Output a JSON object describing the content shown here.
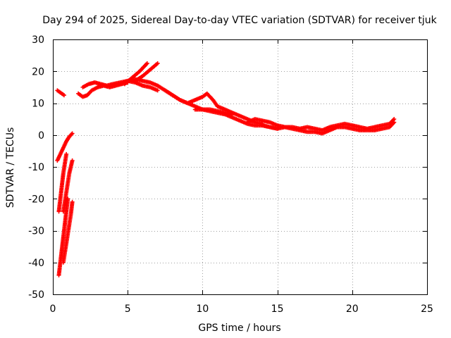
{
  "chart_data": {
    "type": "scatter",
    "title": "Day 294 of 2025, Sidereal Day-to-day VTEC variation (SDTVAR) for receiver tjuk",
    "xlabel": "GPS time / hours",
    "ylabel": "SDTVAR / TECUs",
    "xlim": [
      0,
      25
    ],
    "ylim": [
      -50,
      30
    ],
    "xticks": [
      0,
      5,
      10,
      15,
      20,
      25
    ],
    "yticks": [
      -50,
      -40,
      -30,
      -20,
      -10,
      0,
      10,
      20,
      30
    ],
    "grid": true,
    "marker": "+",
    "color": "#ff0000",
    "series": [
      {
        "x": [
          0.3,
          0.45,
          0.6,
          0.75
        ],
        "y": [
          14,
          13.5,
          13,
          12.5
        ]
      },
      {
        "x": [
          0.3,
          0.5,
          0.7,
          0.9,
          1.1,
          1.3
        ],
        "y": [
          -8,
          -6,
          -4,
          -2,
          -0.5,
          0.5
        ]
      },
      {
        "x": [
          0.4,
          0.5,
          0.6,
          0.7,
          0.8,
          0.9
        ],
        "y": [
          -24,
          -20,
          -16,
          -12,
          -9,
          -6
        ]
      },
      {
        "x": [
          0.7,
          0.8,
          0.9,
          1.0,
          1.1,
          1.2,
          1.3
        ],
        "y": [
          -24,
          -21,
          -18,
          -15,
          -12,
          -10,
          -8
        ]
      },
      {
        "x": [
          0.4,
          0.5,
          0.6,
          0.7,
          0.8,
          0.9,
          1.0
        ],
        "y": [
          -44,
          -40,
          -36,
          -32,
          -28,
          -24,
          -20
        ]
      },
      {
        "x": [
          0.7,
          0.8,
          0.9,
          1.0,
          1.1,
          1.2,
          1.3
        ],
        "y": [
          -40,
          -37,
          -34,
          -31,
          -28,
          -25,
          -21
        ]
      },
      {
        "x": [
          1.7,
          2.0,
          2.3,
          2.6,
          3.0,
          3.4,
          3.8,
          4.2,
          4.6,
          5.0
        ],
        "y": [
          13,
          12,
          12.5,
          14,
          15,
          15.5,
          15,
          15.5,
          16,
          16.5
        ]
      },
      {
        "x": [
          2.0,
          2.4,
          2.8,
          3.2,
          3.6,
          4.0,
          4.5,
          5.0,
          5.5,
          6.0,
          6.5,
          7.0
        ],
        "y": [
          15,
          16,
          16.5,
          16,
          15.5,
          16,
          16.5,
          17,
          16.5,
          15.5,
          15,
          14
        ]
      },
      {
        "x": [
          4.5,
          5.0,
          5.5,
          6.0,
          6.5,
          7.0,
          7.5,
          8.0,
          8.5,
          9.0,
          9.5,
          10.0,
          10.5,
          11.0,
          11.5,
          12.0
        ],
        "y": [
          16,
          17,
          17.5,
          17,
          16.5,
          15.5,
          14,
          12.5,
          11,
          10,
          9,
          8,
          8,
          7.5,
          7,
          6.5
        ]
      },
      {
        "x": [
          4.8,
          5.3,
          5.8,
          6.3
        ],
        "y": [
          16,
          18,
          20,
          22.5
        ]
      },
      {
        "x": [
          5.5,
          6.0,
          6.5,
          7.0
        ],
        "y": [
          17,
          18.5,
          20.5,
          22.5
        ]
      },
      {
        "x": [
          7.5,
          8.0,
          8.5,
          9.0,
          9.5,
          10.0,
          10.3,
          10.7,
          11.0,
          11.5,
          12.0,
          12.5,
          13.0,
          13.5,
          14.0
        ],
        "y": [
          14,
          12.5,
          11,
          10,
          11,
          12,
          13,
          11,
          9,
          8,
          7,
          6,
          5,
          4,
          3.5
        ]
      },
      {
        "x": [
          9.5,
          10.0,
          10.5,
          11.0,
          11.5,
          12.0,
          12.5,
          13.0,
          13.5,
          14.0,
          14.5,
          15.0
        ],
        "y": [
          8,
          8,
          7.5,
          7,
          6.5,
          5.5,
          4.5,
          3.5,
          3,
          3,
          2.5,
          2
        ]
      },
      {
        "x": [
          13.0,
          13.5,
          14.0,
          14.5,
          15.0,
          15.5,
          16.0,
          16.5,
          17.0,
          17.5,
          18.0,
          18.5,
          19.0,
          19.5,
          20.0,
          20.5,
          21.0,
          21.5,
          22.0,
          22.5,
          22.8
        ],
        "y": [
          4,
          5,
          4.5,
          4,
          3,
          2.5,
          2,
          1.5,
          1,
          1,
          0.5,
          1.5,
          2.5,
          2.5,
          2,
          1.5,
          1.5,
          1.5,
          2,
          2.5,
          4
        ]
      },
      {
        "x": [
          14.0,
          14.5,
          15.0,
          15.5,
          16.0,
          16.5,
          17.0,
          17.5,
          18.0,
          18.5,
          19.0,
          19.5,
          20.0,
          20.5,
          21.0,
          21.5,
          22.0,
          22.5,
          22.8
        ],
        "y": [
          3,
          2.5,
          2,
          2.5,
          2.5,
          2,
          2.5,
          2,
          1.5,
          2.5,
          3,
          3.5,
          3,
          2.5,
          2,
          2.5,
          3,
          3.5,
          5
        ]
      }
    ]
  }
}
